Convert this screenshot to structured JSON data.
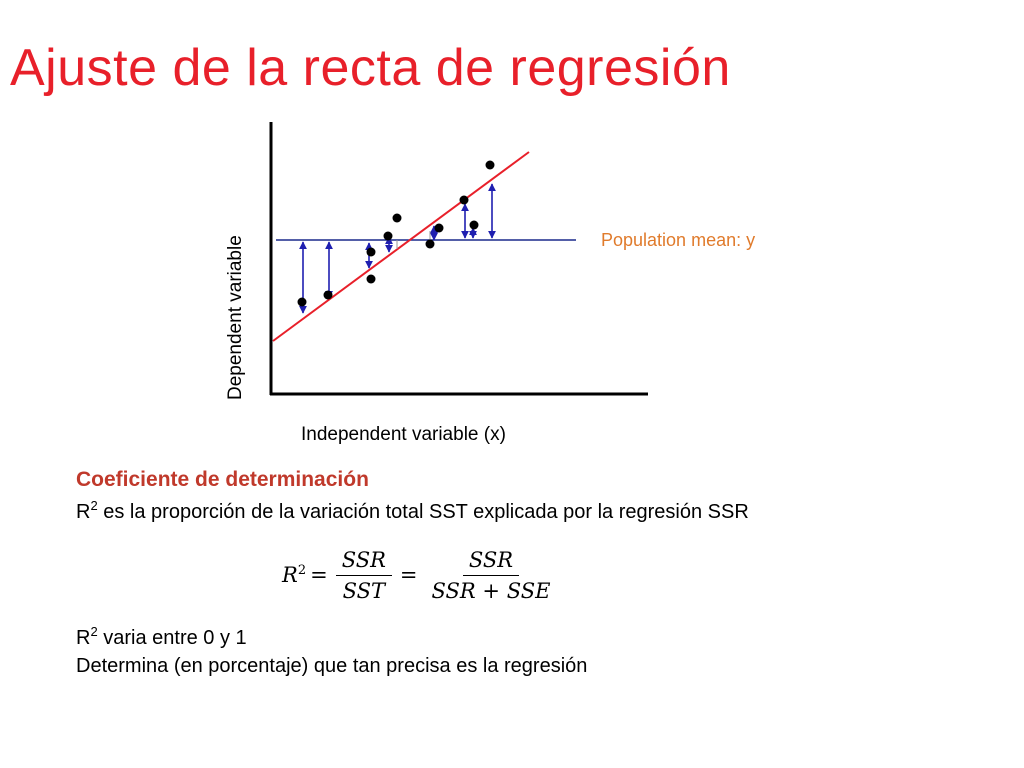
{
  "slide": {
    "title": "Ajuste de la recta de regresión"
  },
  "diagram": {
    "ylabel": "Dependent variable",
    "xlabel": "Independent variable (x)",
    "mean_label": "Population mean: y",
    "colors": {
      "regression_line": "#e8202a",
      "mean_line": "#1a2a8c",
      "arrows": "#1f1fb0",
      "points": "#000000",
      "axes": "#000000",
      "mean_label": "#e07b2c"
    }
  },
  "text": {
    "subhead": "Coeficiente de determinación",
    "line1_r": "R",
    "line1_sup": "2",
    "line1_rest": " es la proporción de la variación total SST explicada por la regresión SSR",
    "formula": {
      "lhs": "R",
      "lhs_sup": "2",
      "eq1": "=",
      "frac1_num": "SSR",
      "frac1_den": "SST",
      "eq2": "=",
      "frac2_num": "SSR",
      "frac2_den": "SSR + SSE"
    },
    "line2_r": "R",
    "line2_sup": "2",
    "line2_rest": " varia entre 0 y 1",
    "line3": "Determina (en porcentaje) que tan precisa es la regresión"
  }
}
